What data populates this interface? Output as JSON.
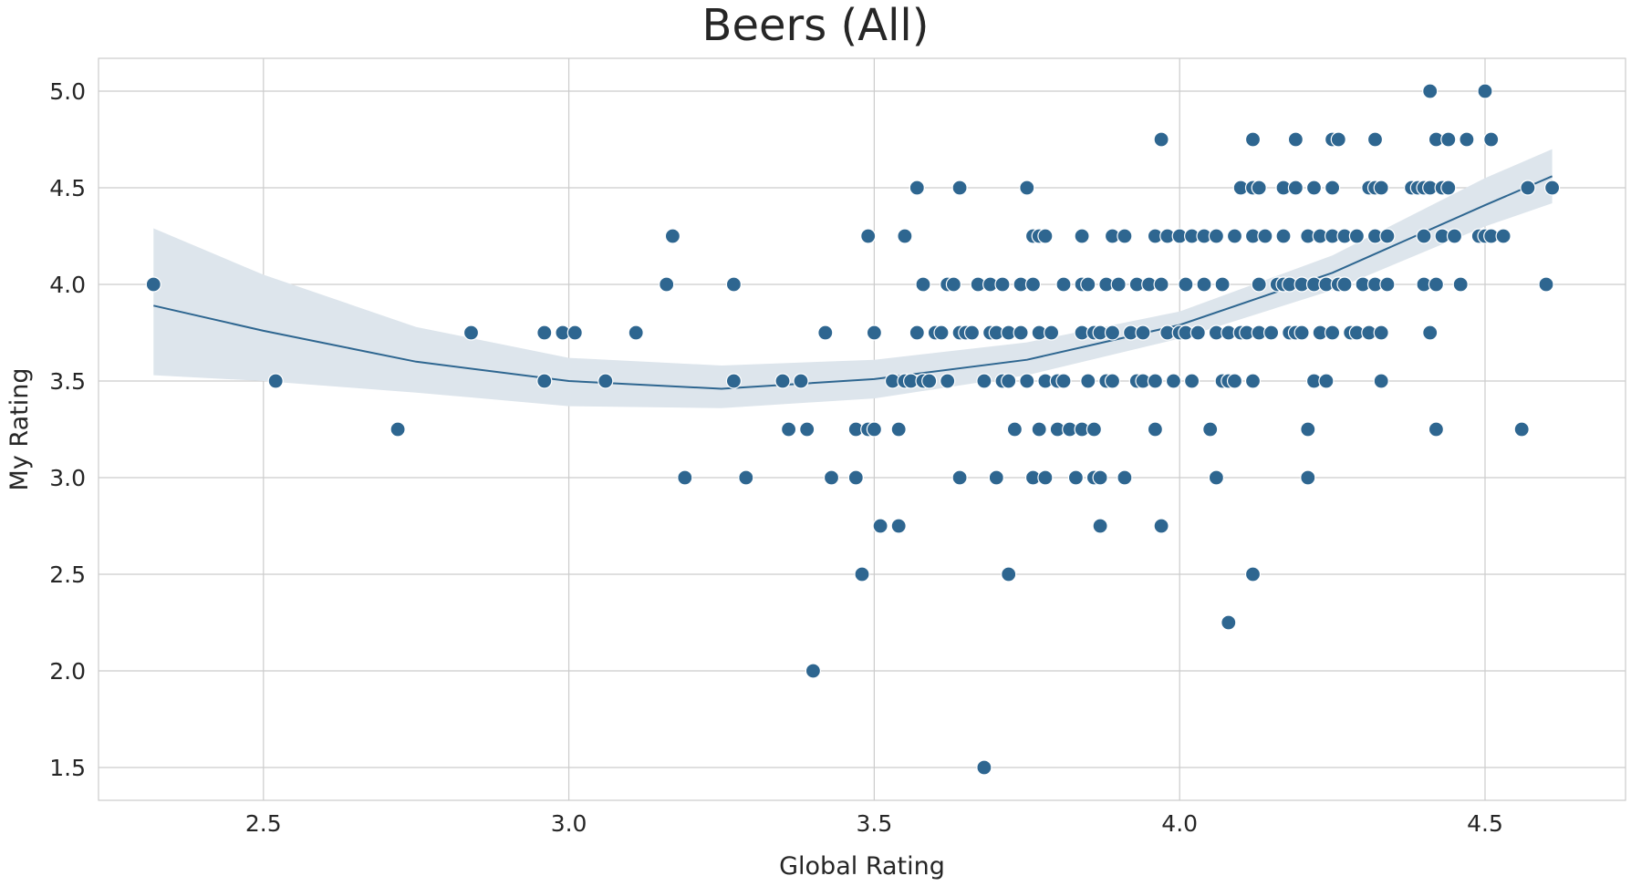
{
  "chart_data": {
    "type": "scatter",
    "title": "Beers (All)",
    "xlabel": "Global Rating",
    "ylabel": "My Rating",
    "xlim": [
      2.23,
      4.73
    ],
    "ylim": [
      1.33,
      5.17
    ],
    "xticks": [
      2.5,
      3.0,
      3.5,
      4.0,
      4.5
    ],
    "yticks": [
      1.5,
      2.0,
      2.5,
      3.0,
      3.5,
      4.0,
      4.5,
      5.0
    ],
    "xtick_labels": [
      "2.5",
      "3.0",
      "3.5",
      "4.0",
      "4.5"
    ],
    "ytick_labels": [
      "1.5",
      "2.0",
      "2.5",
      "3.0",
      "3.5",
      "4.0",
      "4.5",
      "5.0"
    ],
    "grid": true,
    "legend": "none",
    "point_color": "#2e6690",
    "fit_line_color": "#2e6690",
    "confidence_band_color": "#dde5ec",
    "fit": {
      "type": "polynomial-order-2",
      "x": [
        2.32,
        2.5,
        2.75,
        3.0,
        3.25,
        3.5,
        3.75,
        4.0,
        4.25,
        4.5,
        4.61
      ],
      "y": [
        3.89,
        3.76,
        3.6,
        3.5,
        3.46,
        3.51,
        3.61,
        3.79,
        4.06,
        4.41,
        4.56
      ],
      "ci_lower": [
        3.53,
        3.5,
        3.44,
        3.37,
        3.36,
        3.41,
        3.53,
        3.72,
        3.97,
        4.3,
        4.42
      ],
      "ci_upper": [
        4.29,
        4.05,
        3.78,
        3.62,
        3.58,
        3.61,
        3.7,
        3.86,
        4.15,
        4.55,
        4.7
      ]
    },
    "points": [
      [
        2.32,
        4.0
      ],
      [
        2.52,
        3.5
      ],
      [
        2.72,
        3.25
      ],
      [
        2.84,
        3.75
      ],
      [
        2.96,
        3.75
      ],
      [
        2.96,
        3.5
      ],
      [
        2.99,
        3.75
      ],
      [
        3.01,
        3.75
      ],
      [
        3.06,
        3.5
      ],
      [
        3.11,
        3.75
      ],
      [
        3.16,
        4.0
      ],
      [
        3.17,
        4.25
      ],
      [
        3.19,
        3.0
      ],
      [
        3.27,
        4.0
      ],
      [
        3.27,
        3.5
      ],
      [
        3.29,
        3.0
      ],
      [
        3.35,
        3.5
      ],
      [
        3.36,
        3.25
      ],
      [
        3.38,
        3.5
      ],
      [
        3.39,
        3.25
      ],
      [
        3.4,
        2.0
      ],
      [
        3.42,
        3.75
      ],
      [
        3.43,
        3.0
      ],
      [
        3.47,
        3.25
      ],
      [
        3.47,
        3.0
      ],
      [
        3.48,
        2.5
      ],
      [
        3.49,
        3.25
      ],
      [
        3.49,
        4.25
      ],
      [
        3.5,
        3.25
      ],
      [
        3.5,
        3.75
      ],
      [
        3.51,
        2.75
      ],
      [
        3.53,
        3.5
      ],
      [
        3.54,
        3.25
      ],
      [
        3.54,
        2.75
      ],
      [
        3.55,
        4.25
      ],
      [
        3.55,
        3.5
      ],
      [
        3.56,
        3.5
      ],
      [
        3.57,
        4.5
      ],
      [
        3.57,
        3.75
      ],
      [
        3.58,
        4.0
      ],
      [
        3.58,
        3.5
      ],
      [
        3.59,
        3.5
      ],
      [
        3.6,
        3.75
      ],
      [
        3.61,
        3.75
      ],
      [
        3.62,
        4.0
      ],
      [
        3.62,
        3.5
      ],
      [
        3.63,
        4.0
      ],
      [
        3.64,
        4.5
      ],
      [
        3.64,
        3.75
      ],
      [
        3.64,
        3.0
      ],
      [
        3.65,
        3.75
      ],
      [
        3.66,
        3.75
      ],
      [
        3.67,
        4.0
      ],
      [
        3.68,
        3.5
      ],
      [
        3.68,
        1.5
      ],
      [
        3.69,
        4.0
      ],
      [
        3.69,
        3.75
      ],
      [
        3.7,
        3.75
      ],
      [
        3.7,
        3.0
      ],
      [
        3.71,
        4.0
      ],
      [
        3.71,
        3.5
      ],
      [
        3.72,
        3.75
      ],
      [
        3.72,
        3.5
      ],
      [
        3.72,
        2.5
      ],
      [
        3.73,
        3.25
      ],
      [
        3.74,
        4.0
      ],
      [
        3.74,
        3.75
      ],
      [
        3.75,
        4.5
      ],
      [
        3.75,
        3.5
      ],
      [
        3.76,
        4.0
      ],
      [
        3.76,
        4.25
      ],
      [
        3.76,
        3.0
      ],
      [
        3.77,
        4.25
      ],
      [
        3.77,
        3.75
      ],
      [
        3.77,
        3.25
      ],
      [
        3.78,
        4.25
      ],
      [
        3.78,
        3.5
      ],
      [
        3.78,
        3.0
      ],
      [
        3.79,
        3.75
      ],
      [
        3.8,
        3.5
      ],
      [
        3.8,
        3.25
      ],
      [
        3.81,
        4.0
      ],
      [
        3.81,
        3.5
      ],
      [
        3.82,
        3.25
      ],
      [
        3.83,
        3.0
      ],
      [
        3.84,
        4.25
      ],
      [
        3.84,
        3.75
      ],
      [
        3.84,
        4.0
      ],
      [
        3.84,
        3.25
      ],
      [
        3.85,
        4.0
      ],
      [
        3.85,
        3.5
      ],
      [
        3.86,
        3.75
      ],
      [
        3.86,
        3.25
      ],
      [
        3.86,
        3.0
      ],
      [
        3.87,
        3.75
      ],
      [
        3.87,
        3.0
      ],
      [
        3.87,
        2.75
      ],
      [
        3.88,
        4.0
      ],
      [
        3.88,
        3.5
      ],
      [
        3.89,
        4.25
      ],
      [
        3.89,
        3.75
      ],
      [
        3.89,
        3.5
      ],
      [
        3.9,
        4.0
      ],
      [
        3.91,
        4.25
      ],
      [
        3.91,
        3.0
      ],
      [
        3.92,
        3.75
      ],
      [
        3.93,
        4.0
      ],
      [
        3.93,
        3.5
      ],
      [
        3.94,
        3.5
      ],
      [
        3.94,
        3.75
      ],
      [
        3.95,
        4.0
      ],
      [
        3.96,
        4.25
      ],
      [
        3.96,
        3.5
      ],
      [
        3.96,
        3.25
      ],
      [
        3.97,
        4.75
      ],
      [
        3.97,
        4.0
      ],
      [
        3.97,
        2.75
      ],
      [
        3.98,
        4.25
      ],
      [
        3.98,
        3.75
      ],
      [
        3.99,
        3.5
      ],
      [
        4.0,
        4.25
      ],
      [
        4.0,
        3.75
      ],
      [
        4.01,
        4.0
      ],
      [
        4.01,
        3.75
      ],
      [
        4.02,
        4.25
      ],
      [
        4.02,
        3.5
      ],
      [
        4.03,
        3.75
      ],
      [
        4.04,
        4.25
      ],
      [
        4.04,
        4.0
      ],
      [
        4.05,
        3.25
      ],
      [
        4.06,
        4.25
      ],
      [
        4.06,
        3.75
      ],
      [
        4.06,
        3.0
      ],
      [
        4.07,
        4.0
      ],
      [
        4.07,
        3.5
      ],
      [
        4.08,
        3.75
      ],
      [
        4.08,
        2.25
      ],
      [
        4.08,
        3.5
      ],
      [
        4.09,
        4.25
      ],
      [
        4.09,
        3.5
      ],
      [
        4.1,
        3.75
      ],
      [
        4.1,
        4.5
      ],
      [
        4.11,
        3.75
      ],
      [
        4.12,
        4.25
      ],
      [
        4.12,
        4.75
      ],
      [
        4.12,
        4.5
      ],
      [
        4.12,
        3.5
      ],
      [
        4.12,
        2.5
      ],
      [
        4.13,
        4.0
      ],
      [
        4.13,
        4.5
      ],
      [
        4.13,
        3.75
      ],
      [
        4.14,
        4.25
      ],
      [
        4.15,
        3.75
      ],
      [
        4.16,
        4.0
      ],
      [
        4.17,
        4.5
      ],
      [
        4.17,
        4.25
      ],
      [
        4.17,
        4.0
      ],
      [
        4.18,
        4.0
      ],
      [
        4.18,
        3.75
      ],
      [
        4.19,
        4.5
      ],
      [
        4.19,
        4.75
      ],
      [
        4.19,
        3.75
      ],
      [
        4.2,
        4.0
      ],
      [
        4.2,
        3.75
      ],
      [
        4.21,
        4.25
      ],
      [
        4.21,
        3.25
      ],
      [
        4.21,
        3.0
      ],
      [
        4.22,
        4.5
      ],
      [
        4.22,
        4.0
      ],
      [
        4.22,
        3.5
      ],
      [
        4.23,
        4.25
      ],
      [
        4.23,
        3.75
      ],
      [
        4.24,
        3.5
      ],
      [
        4.24,
        4.0
      ],
      [
        4.25,
        4.75
      ],
      [
        4.25,
        4.5
      ],
      [
        4.25,
        4.25
      ],
      [
        4.25,
        3.75
      ],
      [
        4.26,
        4.0
      ],
      [
        4.26,
        4.75
      ],
      [
        4.27,
        4.25
      ],
      [
        4.27,
        4.0
      ],
      [
        4.28,
        3.75
      ],
      [
        4.29,
        3.75
      ],
      [
        4.29,
        4.25
      ],
      [
        4.3,
        4.0
      ],
      [
        4.31,
        4.5
      ],
      [
        4.31,
        3.75
      ],
      [
        4.32,
        4.75
      ],
      [
        4.32,
        4.25
      ],
      [
        4.32,
        4.5
      ],
      [
        4.32,
        4.0
      ],
      [
        4.33,
        4.5
      ],
      [
        4.33,
        3.75
      ],
      [
        4.33,
        3.5
      ],
      [
        4.34,
        4.25
      ],
      [
        4.34,
        4.0
      ],
      [
        4.38,
        4.5
      ],
      [
        4.39,
        4.5
      ],
      [
        4.4,
        4.0
      ],
      [
        4.4,
        4.5
      ],
      [
        4.4,
        4.25
      ],
      [
        4.41,
        5.0
      ],
      [
        4.41,
        4.5
      ],
      [
        4.41,
        3.75
      ],
      [
        4.42,
        4.75
      ],
      [
        4.42,
        4.0
      ],
      [
        4.42,
        3.25
      ],
      [
        4.43,
        4.5
      ],
      [
        4.43,
        4.25
      ],
      [
        4.44,
        4.75
      ],
      [
        4.44,
        4.5
      ],
      [
        4.45,
        4.25
      ],
      [
        4.46,
        4.0
      ],
      [
        4.47,
        4.75
      ],
      [
        4.49,
        4.25
      ],
      [
        4.5,
        5.0
      ],
      [
        4.5,
        4.25
      ],
      [
        4.51,
        4.75
      ],
      [
        4.51,
        4.25
      ],
      [
        4.53,
        4.25
      ],
      [
        4.56,
        3.25
      ],
      [
        4.57,
        4.5
      ],
      [
        4.6,
        4.0
      ],
      [
        4.61,
        4.5
      ]
    ]
  }
}
